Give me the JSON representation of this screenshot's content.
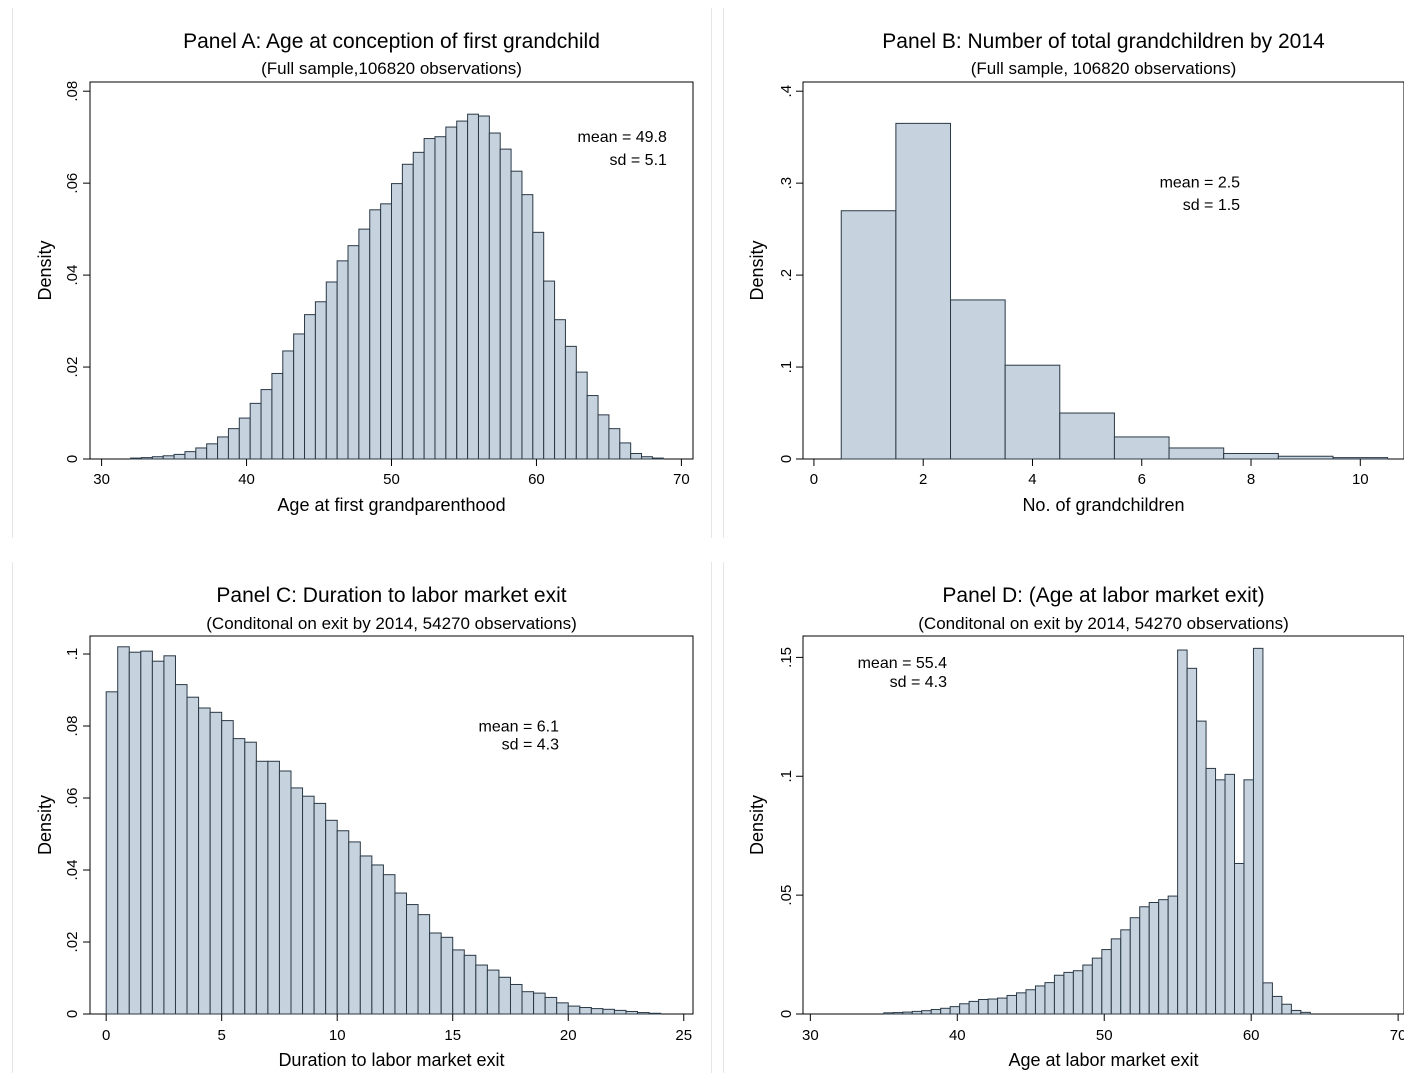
{
  "chart_data": [
    {
      "type": "bar",
      "title": "Panel A: Age at conception of first grandchild",
      "subtitle": "(Full sample,106820 observations)",
      "xlabel": "Age at first grandparenthood",
      "ylabel": "Density",
      "xlim": [
        29.2,
        70.8
      ],
      "ylim": [
        0,
        0.082
      ],
      "xticks": [
        30,
        40,
        50,
        60,
        70
      ],
      "xtick_labels": [
        "30",
        "40",
        "50",
        "60",
        "70"
      ],
      "yticks": [
        0,
        0.02,
        0.04,
        0.06,
        0.08
      ],
      "ytick_labels": [
        "0",
        ".02",
        ".04",
        ".06",
        ".08"
      ],
      "annotations": [
        {
          "label": "mean = 49.8",
          "x": 69,
          "y": 0.069
        },
        {
          "label": "sd = 5.1",
          "x": 69,
          "y": 0.064
        }
      ],
      "bins": {
        "start": 32.0,
        "width": 0.75,
        "values": [
          0.0002,
          0.0003,
          0.0005,
          0.0007,
          0.001,
          0.0016,
          0.0024,
          0.0033,
          0.0048,
          0.0066,
          0.0089,
          0.0121,
          0.0151,
          0.0186,
          0.0235,
          0.0272,
          0.0314,
          0.0342,
          0.0385,
          0.0431,
          0.0464,
          0.05,
          0.0542,
          0.0555,
          0.0599,
          0.0641,
          0.0667,
          0.0697,
          0.0701,
          0.0722,
          0.0735,
          0.075,
          0.0746,
          0.0709,
          0.0674,
          0.0626,
          0.0575,
          0.0493,
          0.0387,
          0.0303,
          0.0245,
          0.0189,
          0.0138,
          0.0096,
          0.0066,
          0.0035,
          0.0012,
          0.0005,
          0.0002
        ]
      }
    },
    {
      "type": "bar",
      "title": "Panel B: Number of total grandchildren by 2014",
      "subtitle": "(Full sample, 106820 observations)",
      "xlabel": "No. of grandchildren",
      "ylabel": "Density",
      "xlim": [
        -0.2,
        10.8
      ],
      "ylim": [
        0,
        0.41
      ],
      "xticks": [
        0,
        2,
        4,
        6,
        8,
        10
      ],
      "xtick_labels": [
        "0",
        "2",
        "4",
        "6",
        "8",
        "10"
      ],
      "yticks": [
        0,
        0.1,
        0.2,
        0.3,
        0.4
      ],
      "ytick_labels": [
        "0",
        ".1",
        ".2",
        ".3",
        ".4"
      ],
      "annotations": [
        {
          "label": "mean = 2.5",
          "x": 7.8,
          "y": 0.295
        },
        {
          "label": "sd = 1.5",
          "x": 7.8,
          "y": 0.271
        }
      ],
      "bins": {
        "start": 0.5,
        "width": 1,
        "values": [
          0.27,
          0.365,
          0.173,
          0.102,
          0.05,
          0.024,
          0.012,
          0.006,
          0.003,
          0.0015
        ]
      }
    },
    {
      "type": "bar",
      "title": "Panel C: Duration to labor market exit",
      "subtitle": "(Conditonal on exit by 2014, 54270 observations)",
      "xlabel": "Duration to labor market exit",
      "ylabel": "Density",
      "xlim": [
        -0.7,
        25.4
      ],
      "ylim": [
        0,
        0.105
      ],
      "xticks": [
        0,
        5,
        10,
        15,
        20,
        25
      ],
      "xtick_labels": [
        "0",
        "5",
        "10",
        "15",
        "20",
        "25"
      ],
      "yticks": [
        0,
        0.02,
        0.04,
        0.06,
        0.08,
        0.1
      ],
      "ytick_labels": [
        "0",
        ".02",
        ".04",
        ".06",
        ".08",
        ".1"
      ],
      "annotations": [
        {
          "label": "mean = 6.1",
          "x": 19.6,
          "y": 0.0785
        },
        {
          "label": "sd = 4.3",
          "x": 19.6,
          "y": 0.0735
        }
      ],
      "bins": {
        "start": 0,
        "width": 0.5,
        "values": [
          0.0895,
          0.102,
          0.1005,
          0.1008,
          0.098,
          0.0995,
          0.0915,
          0.088,
          0.085,
          0.0838,
          0.0815,
          0.0765,
          0.0755,
          0.0702,
          0.0702,
          0.0675,
          0.0628,
          0.0605,
          0.0585,
          0.0538,
          0.0509,
          0.0478,
          0.0439,
          0.0414,
          0.0387,
          0.0336,
          0.0304,
          0.0276,
          0.0225,
          0.0213,
          0.0178,
          0.0163,
          0.0136,
          0.0122,
          0.0102,
          0.0082,
          0.0062,
          0.0058,
          0.0046,
          0.0031,
          0.0022,
          0.0018,
          0.0015,
          0.0013,
          0.001,
          0.0007,
          0.0004,
          0.0002
        ]
      }
    },
    {
      "type": "bar",
      "title": "Panel D: (Age at labor market exit)",
      "subtitle": "(Conditonal on exit by 2014, 54270 observations)",
      "xlabel": "Age at labor market exit",
      "ylabel": "Density",
      "xlim": [
        29.5,
        70.4
      ],
      "ylim": [
        0,
        0.159
      ],
      "xticks": [
        30,
        40,
        50,
        60,
        70
      ],
      "xtick_labels": [
        "30",
        "40",
        "50",
        "60",
        "70"
      ],
      "yticks": [
        0,
        0.05,
        0.1,
        0.15
      ],
      "ytick_labels": [
        "0",
        ".05",
        ".1",
        ".15"
      ],
      "annotations": [
        {
          "label": "mean = 55.4",
          "x": 39.3,
          "y": 0.1455
        },
        {
          "label": "sd = 4.3",
          "x": 39.3,
          "y": 0.1375
        }
      ],
      "bins": {
        "start": 35.0,
        "width": 0.645,
        "values": [
          0.0005,
          0.0006,
          0.0008,
          0.0011,
          0.0014,
          0.0019,
          0.0024,
          0.0031,
          0.0043,
          0.0053,
          0.0061,
          0.0063,
          0.0067,
          0.0078,
          0.0089,
          0.0102,
          0.0118,
          0.0132,
          0.0163,
          0.0175,
          0.0182,
          0.0206,
          0.0235,
          0.0271,
          0.0316,
          0.0354,
          0.0405,
          0.0451,
          0.0469,
          0.0481,
          0.0496,
          0.1531,
          0.1454,
          0.1232,
          0.1033,
          0.0985,
          0.1008,
          0.0633,
          0.0985,
          0.1538,
          0.0131,
          0.0074,
          0.0041,
          0.0015,
          0.0007
        ]
      }
    }
  ]
}
